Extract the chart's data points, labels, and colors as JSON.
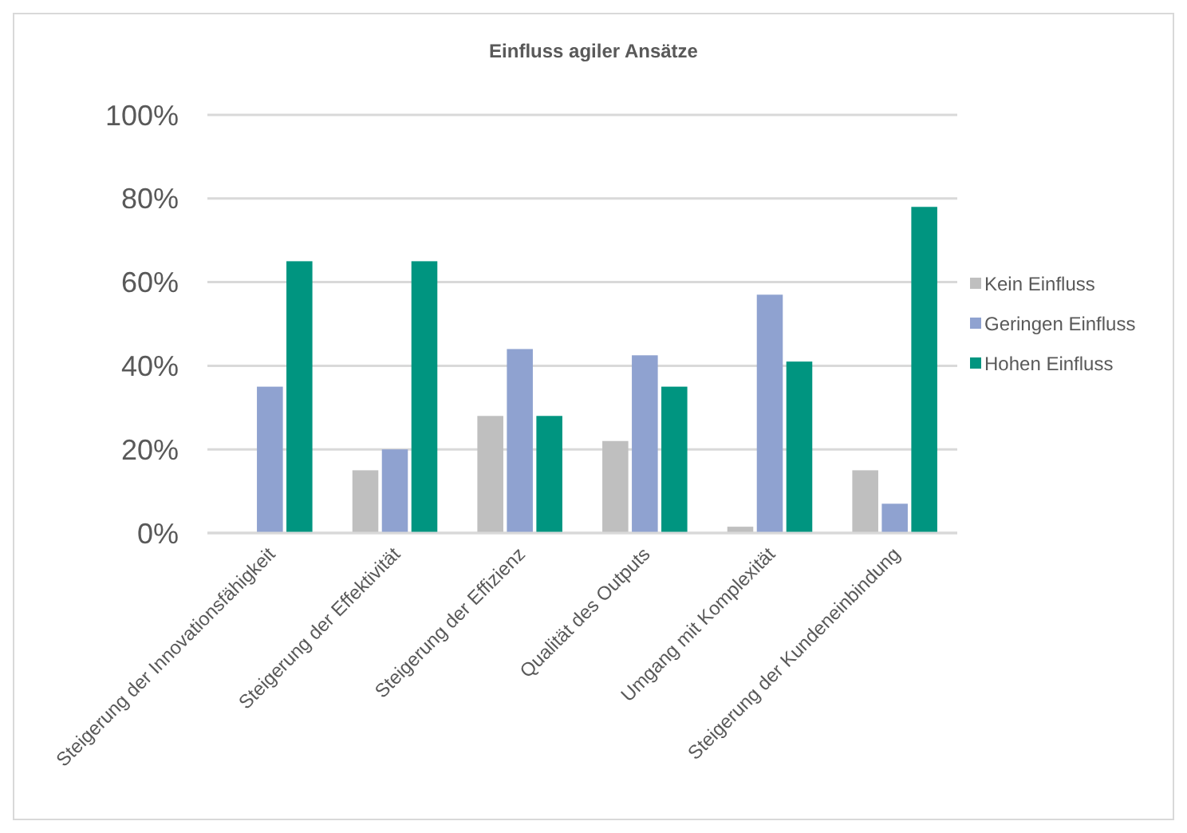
{
  "chart_data": {
    "type": "bar",
    "title": "Einfluss agiler Ansätze",
    "categories": [
      "Steigerung der Innovationsfähigkeit",
      "Steigerung der Effektivität",
      "Steigerung der Effizienz",
      "Qualität des Outputs",
      "Umgang mit Komplexität",
      "Steigerung der Kundeneinbindung"
    ],
    "series": [
      {
        "name": "Kein Einfluss",
        "color": "#bfbfbf",
        "values": [
          0,
          15,
          28,
          22,
          1.5,
          15
        ]
      },
      {
        "name": "Geringen Einfluss",
        "color": "#8fa2d0",
        "values": [
          35,
          20,
          44,
          42.5,
          57,
          7
        ]
      },
      {
        "name": "Hohen Einfluss",
        "color": "#009580",
        "values": [
          65,
          65,
          28,
          35,
          41,
          78
        ]
      }
    ],
    "ylim": [
      0,
      100
    ],
    "yticks": [
      {
        "value": 0,
        "label": "0%"
      },
      {
        "value": 20,
        "label": "20%"
      },
      {
        "value": 40,
        "label": "40%"
      },
      {
        "value": 60,
        "label": "60%"
      },
      {
        "value": 80,
        "label": "80%"
      },
      {
        "value": 100,
        "label": "100%"
      }
    ],
    "grid": "y",
    "legend": "right"
  }
}
